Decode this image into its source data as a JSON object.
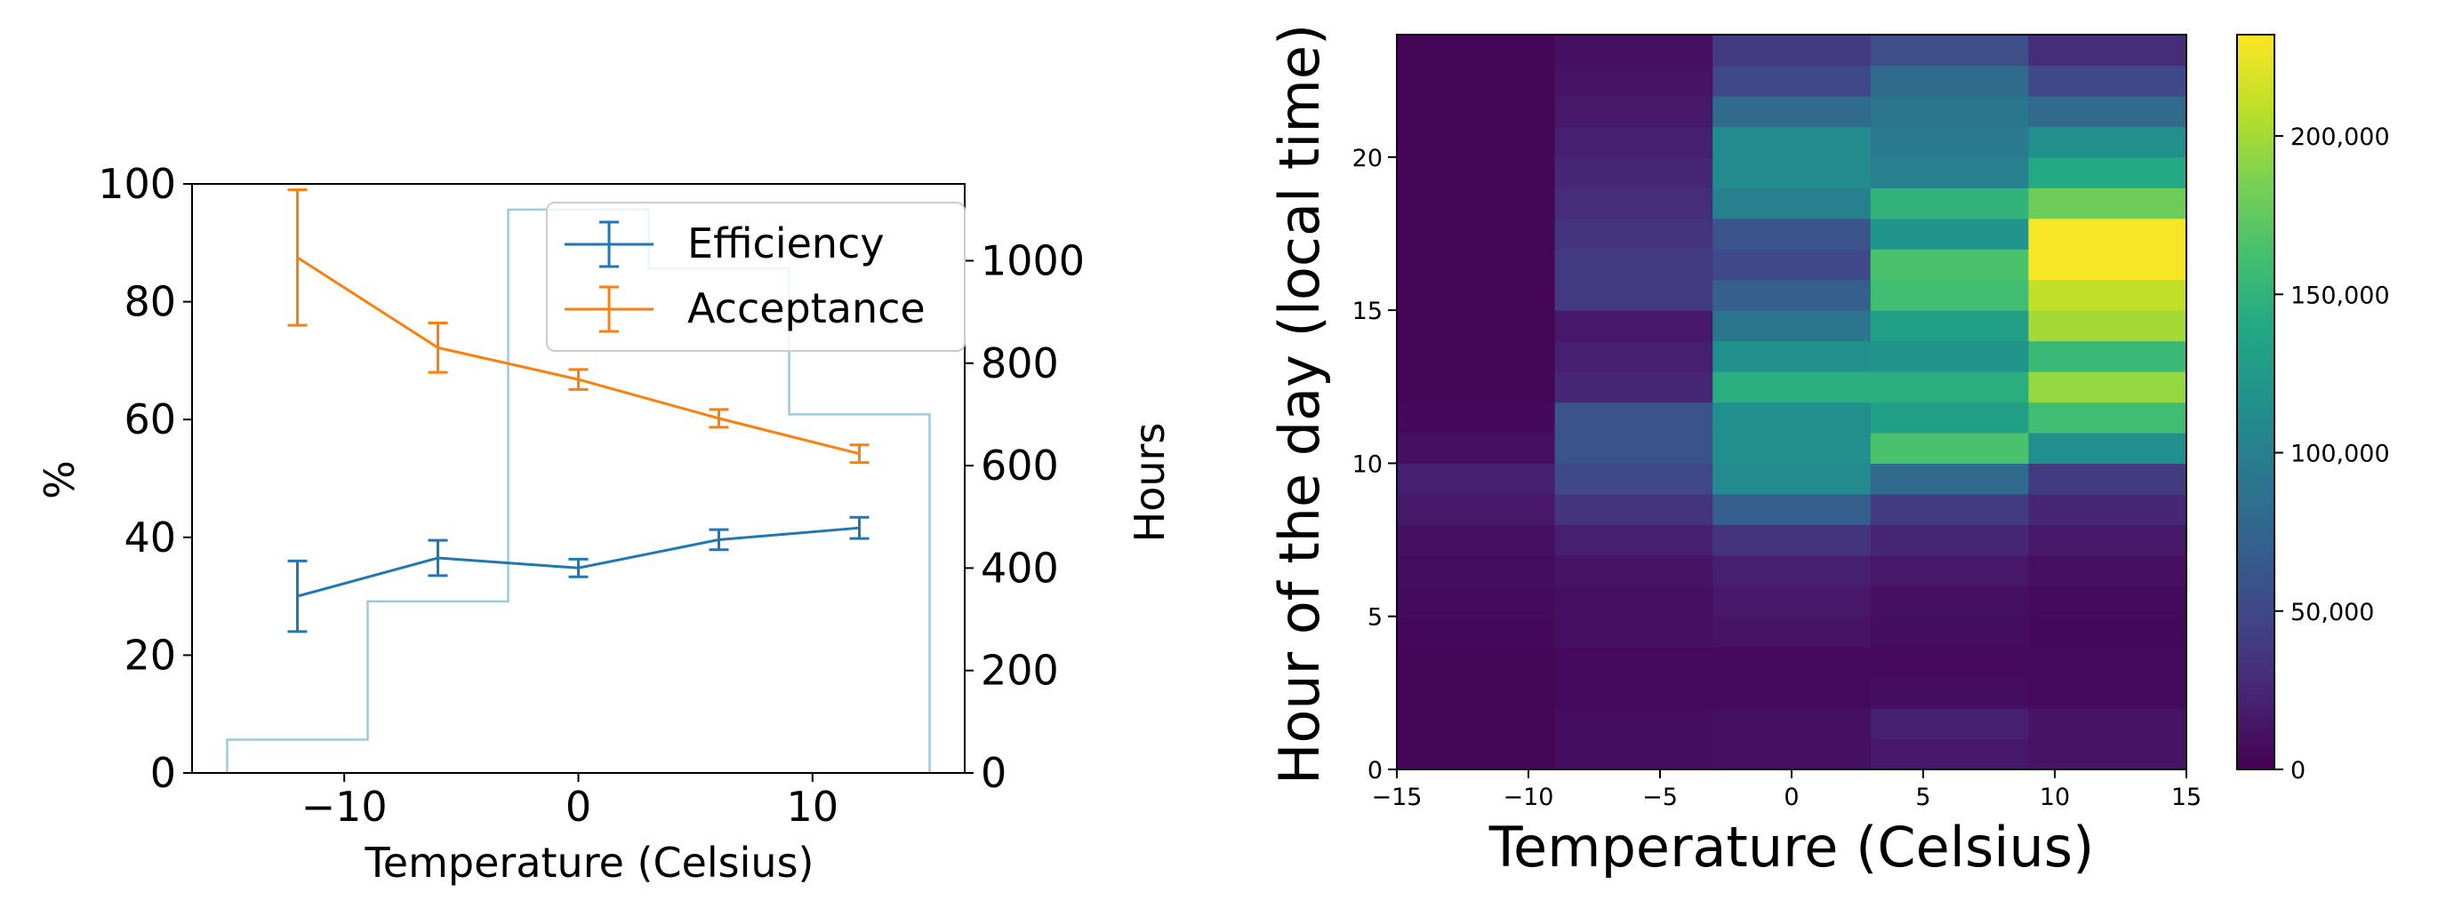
{
  "left_chart": {
    "chart_data": {
      "type": "line",
      "xlabel": "Temperature (Celsius)",
      "ylabel": "%",
      "ylabel_right": "Hours",
      "xlim": [
        -16.5,
        16.5
      ],
      "ylim": [
        0,
        100
      ],
      "ylim_right": [
        0,
        1150
      ],
      "x_ticks": [
        -10,
        0,
        10
      ],
      "x_tick_labels": [
        "−10",
        "0",
        "10"
      ],
      "y_ticks": [
        0,
        20,
        40,
        60,
        80,
        100
      ],
      "y_tick_labels": [
        "0",
        "20",
        "40",
        "60",
        "80",
        "100"
      ],
      "y_right_ticks": [
        0,
        200,
        400,
        600,
        800,
        1000
      ],
      "y_right_tick_labels": [
        "0",
        "200",
        "400",
        "600",
        "800",
        "1000"
      ],
      "legend_position": "top-right",
      "series": [
        {
          "name": "Efficiency",
          "color": "#1f77b4",
          "x": [
            -12,
            -6,
            0,
            6,
            12
          ],
          "values": [
            30,
            36.5,
            34.8,
            39.6,
            41.6
          ],
          "errors": [
            6,
            3,
            1.5,
            1.7,
            1.8
          ]
        },
        {
          "name": "Acceptance",
          "color": "#ff7f0e",
          "x": [
            -12,
            -6,
            0,
            6,
            12
          ],
          "values": [
            87.5,
            72.2,
            66.8,
            60.2,
            54.2
          ],
          "errors": [
            11.5,
            4.2,
            1.7,
            1.5,
            1.5
          ]
        }
      ],
      "hours_histogram": {
        "name": "Hours",
        "color": "#9ecae1",
        "bin_edges": [
          -15,
          -9,
          -3,
          3,
          9,
          15
        ],
        "values": [
          65,
          335,
          1100,
          985,
          700
        ]
      }
    }
  },
  "right_chart": {
    "chart_data": {
      "type": "heatmap",
      "xlabel": "Temperature (Celsius)",
      "ylabel": "Hour of the day (local time)",
      "xlim": [
        -15,
        15
      ],
      "ylim": [
        0,
        24
      ],
      "x_ticks": [
        -15,
        -10,
        -5,
        0,
        5,
        10,
        15
      ],
      "x_tick_labels": [
        "−15",
        "−10",
        "−5",
        "0",
        "5",
        "10",
        "15"
      ],
      "y_ticks": [
        0,
        5,
        10,
        15,
        20
      ],
      "y_tick_labels": [
        "0",
        "5",
        "10",
        "15",
        "20"
      ],
      "x_bin_edges": [
        -15,
        -9,
        -3,
        3,
        9,
        15
      ],
      "hours": [
        0,
        1,
        2,
        3,
        4,
        5,
        6,
        7,
        8,
        9,
        10,
        11,
        12,
        13,
        14,
        15,
        16,
        17,
        18,
        19,
        20,
        21,
        22,
        23
      ],
      "values": [
        [
          3000,
          8000,
          10000,
          15000,
          12000
        ],
        [
          3000,
          8000,
          10000,
          20000,
          12000
        ],
        [
          3000,
          6000,
          6000,
          8000,
          6000
        ],
        [
          3000,
          6000,
          6000,
          6000,
          6000
        ],
        [
          5000,
          10000,
          12000,
          8000,
          5000
        ],
        [
          7000,
          10000,
          15000,
          10000,
          7000
        ],
        [
          8000,
          12000,
          20000,
          15000,
          9000
        ],
        [
          10000,
          20000,
          35000,
          25000,
          15000
        ],
        [
          15000,
          35000,
          70000,
          40000,
          25000
        ],
        [
          20000,
          50000,
          110000,
          80000,
          40000
        ],
        [
          10000,
          60000,
          115000,
          165000,
          115000
        ],
        [
          5000,
          60000,
          115000,
          130000,
          160000
        ],
        [
          3000,
          25000,
          145000,
          145000,
          195000
        ],
        [
          3000,
          20000,
          115000,
          120000,
          155000
        ],
        [
          3000,
          15000,
          90000,
          130000,
          200000
        ],
        [
          3000,
          40000,
          70000,
          160000,
          210000
        ],
        [
          3000,
          40000,
          50000,
          165000,
          230000
        ],
        [
          3000,
          35000,
          60000,
          120000,
          230000
        ],
        [
          3000,
          30000,
          100000,
          150000,
          180000
        ],
        [
          3000,
          25000,
          110000,
          100000,
          140000
        ],
        [
          3000,
          20000,
          110000,
          95000,
          115000
        ],
        [
          3000,
          15000,
          80000,
          90000,
          80000
        ],
        [
          3000,
          12000,
          50000,
          80000,
          50000
        ],
        [
          3000,
          10000,
          40000,
          55000,
          30000
        ]
      ],
      "vmin": 0,
      "vmax": 232000,
      "colormap": "viridis",
      "colorbar_ticks": [
        0,
        50000,
        100000,
        150000,
        200000
      ],
      "colorbar_tick_labels": [
        "0",
        "50,000",
        "100,000",
        "150,000",
        "200,000"
      ]
    }
  }
}
